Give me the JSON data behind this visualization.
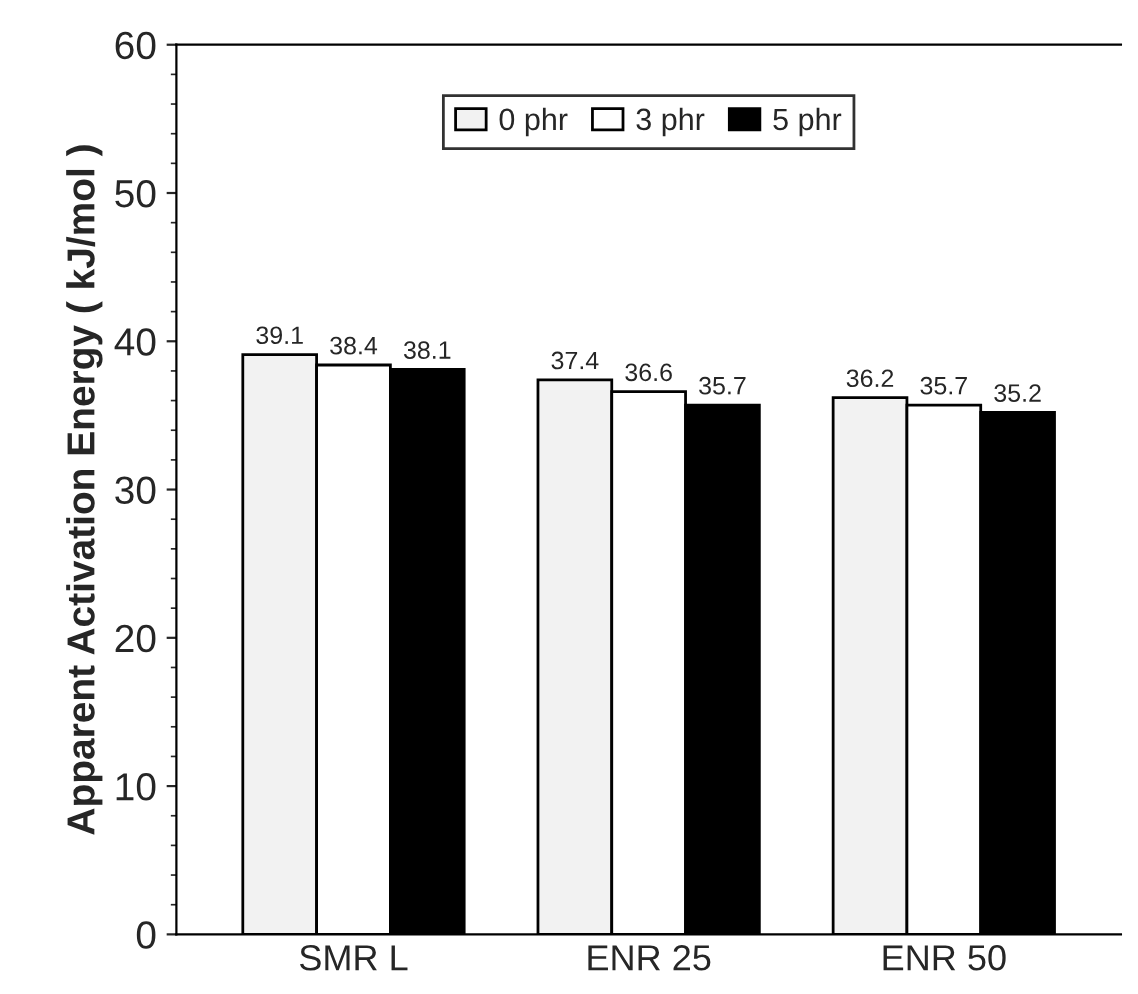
{
  "chart_data": {
    "type": "bar",
    "ylabel": "Apparent Activation Energy ( kJ/mol )",
    "categories": [
      "SMR L",
      "ENR 25",
      "ENR 50"
    ],
    "series": [
      {
        "name": "0 phr",
        "color": "#f2f2f2",
        "values": [
          39.1,
          37.4,
          36.2
        ]
      },
      {
        "name": "3 phr",
        "color": "#ffffff",
        "values": [
          38.4,
          36.6,
          35.7
        ]
      },
      {
        "name": "5 phr",
        "color": "#000000",
        "values": [
          38.1,
          35.7,
          35.2
        ]
      }
    ],
    "ylim": [
      0,
      60
    ],
    "yticks": [
      0,
      10,
      20,
      30,
      40,
      50,
      60
    ],
    "data_labels": true,
    "legend": "top",
    "grid": false
  }
}
